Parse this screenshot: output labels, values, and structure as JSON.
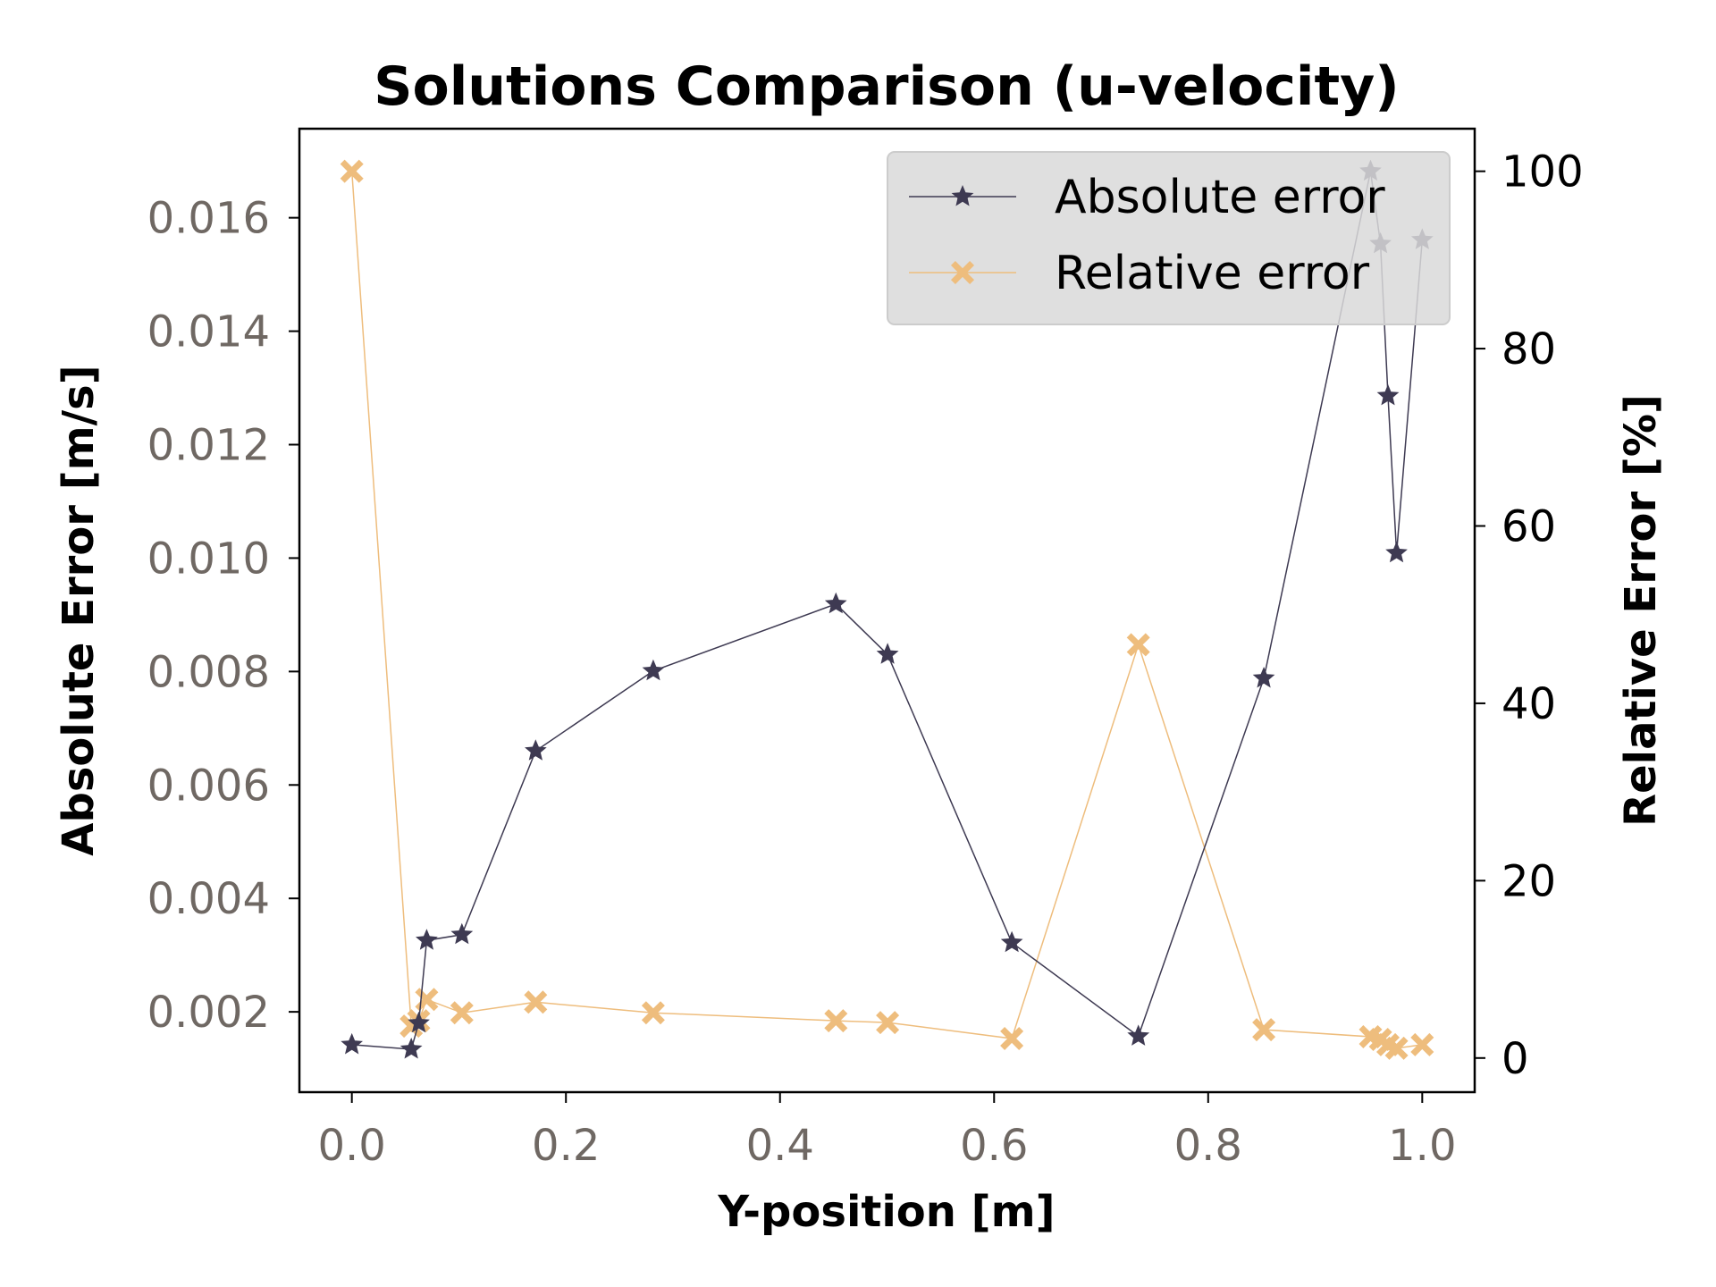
{
  "chart_data": {
    "type": "line",
    "title": "Solutions Comparison (u-velocity)",
    "xlabel": "Y-position [m]",
    "ylabel": "Absolute Error [m/s]",
    "ylabel_right": "Relative Error [%]",
    "xlim": [
      -0.049,
      1.049
    ],
    "ylim": [
      0.000584,
      0.01757
    ],
    "ylim_right": [
      -3.85,
      104.8
    ],
    "xticks": [
      "0.0",
      "0.2",
      "0.4",
      "0.6",
      "0.8",
      "1.0"
    ],
    "yticks": [
      "0.002",
      "0.004",
      "0.006",
      "0.008",
      "0.010",
      "0.012",
      "0.014",
      "0.016"
    ],
    "yticks_right": [
      "0",
      "20",
      "40",
      "60",
      "80",
      "100"
    ],
    "grid": false,
    "legend_position": "top-right",
    "x": [
      0,
      0.0555,
      0.0625,
      0.0699,
      0.1028,
      0.1717,
      0.2816,
      0.4522,
      0.5005,
      0.6166,
      0.7348,
      0.852,
      0.9517,
      0.961,
      0.968,
      0.976,
      1.0
    ],
    "series": [
      {
        "name": "Absolute error",
        "axis": "left",
        "marker": "star",
        "color": "#3e3a52",
        "values": [
          0.00142,
          0.00134,
          0.0018,
          0.00326,
          0.00336,
          0.0066,
          0.00801,
          0.00919,
          0.0083,
          0.00322,
          0.00157,
          0.00788,
          0.01682,
          0.01554,
          0.01286,
          0.01009,
          0.01561
        ]
      },
      {
        "name": "Relative error",
        "axis": "right",
        "marker": "x-filled",
        "color": "#eebd7d",
        "values": [
          100,
          3.6,
          4.2,
          6.6,
          5.1,
          6.3,
          5.1,
          4.2,
          4.0,
          2.2,
          46.6,
          3.2,
          2.4,
          2.1,
          1.5,
          1.1,
          1.5
        ]
      }
    ],
    "colors": {
      "left_tick_labels": "#6f6863",
      "legend_bg": "#d9d9d9"
    }
  }
}
